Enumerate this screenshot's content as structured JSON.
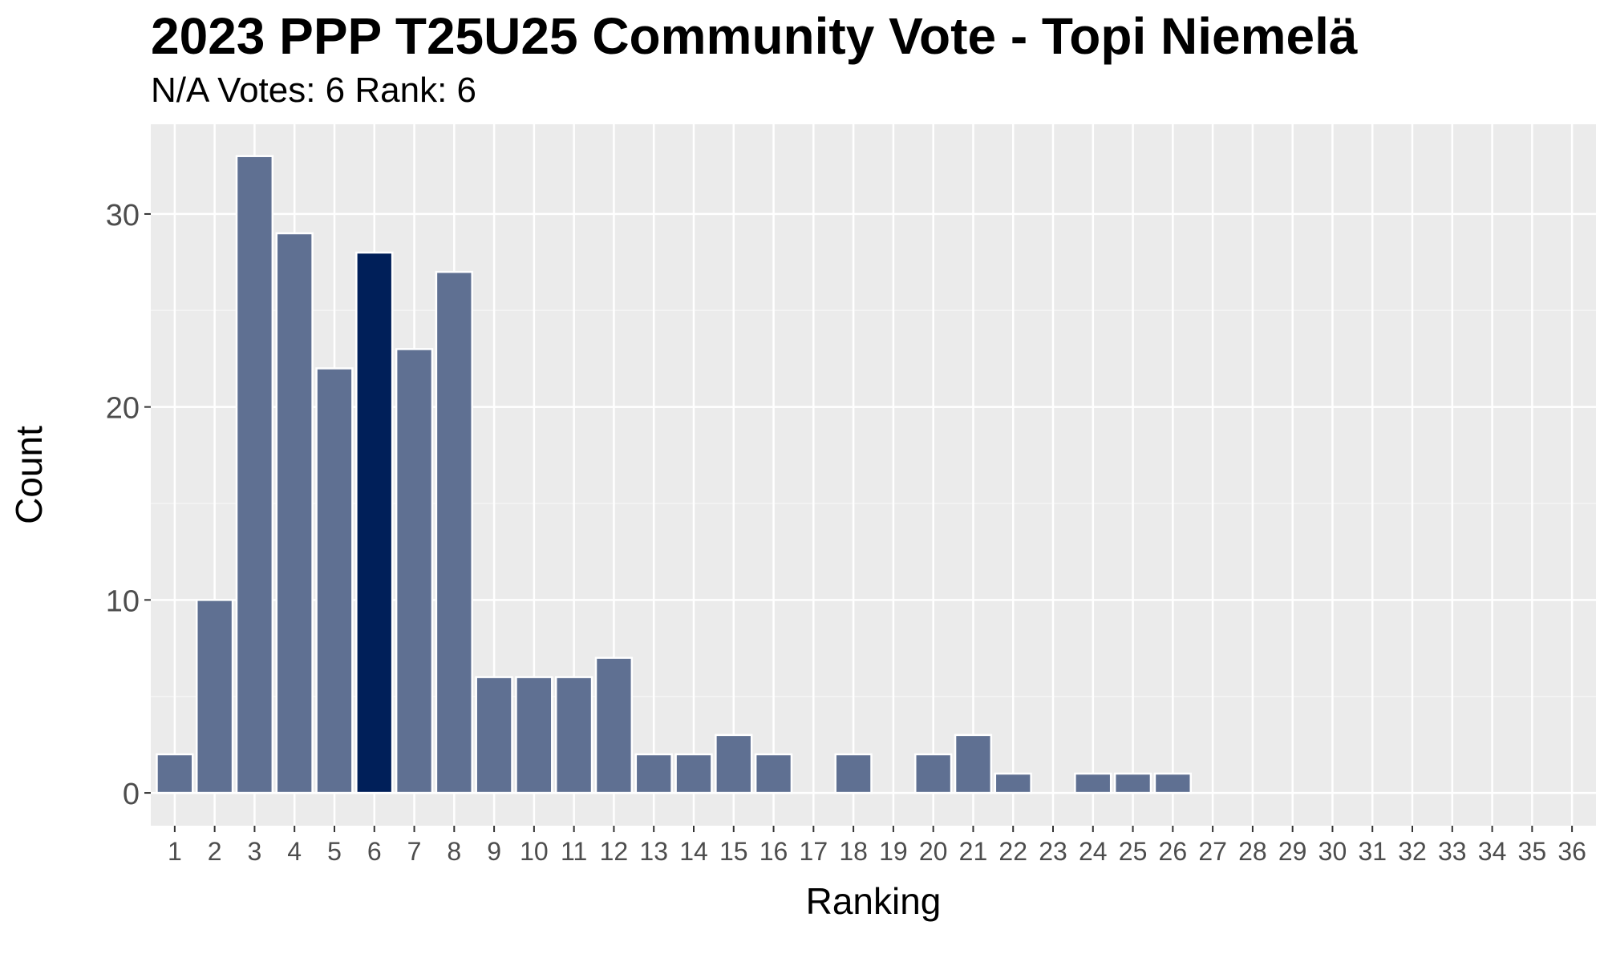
{
  "chart_data": {
    "type": "bar",
    "title": "2023 PPP T25U25 Community Vote - Topi Niemelä",
    "subtitle": "N/A Votes: 6  Rank: 6",
    "xlabel": "Ranking",
    "ylabel": "Count",
    "categories": [
      "1",
      "2",
      "3",
      "4",
      "5",
      "6",
      "7",
      "8",
      "9",
      "10",
      "11",
      "12",
      "13",
      "14",
      "15",
      "16",
      "17",
      "18",
      "19",
      "20",
      "21",
      "22",
      "23",
      "24",
      "25",
      "26",
      "27",
      "28",
      "29",
      "30",
      "31",
      "32",
      "33",
      "34",
      "35",
      "36"
    ],
    "values": [
      2,
      10,
      33,
      29,
      22,
      28,
      23,
      27,
      6,
      6,
      6,
      7,
      2,
      2,
      3,
      2,
      0,
      2,
      0,
      2,
      3,
      1,
      0,
      1,
      1,
      1,
      0,
      0,
      0,
      0,
      0,
      0,
      0,
      0,
      0,
      0
    ],
    "highlight_category": "6",
    "yticks": [
      0,
      10,
      20,
      30
    ],
    "ylim": [
      -1.7,
      34.65
    ],
    "grid": true,
    "colors": {
      "bar": "#5f7092",
      "highlight": "#001f59",
      "panel": "#ebebeb",
      "grid_major": "#ffffff",
      "grid_minor": "#f4f4f4",
      "tick_text": "#4d4d4d"
    }
  }
}
